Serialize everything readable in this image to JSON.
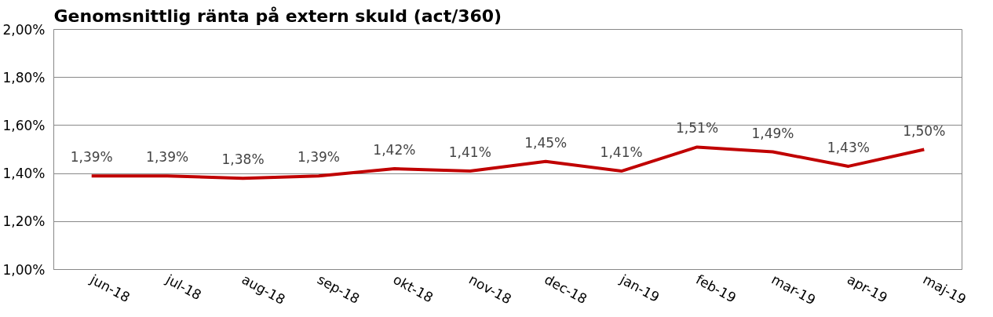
{
  "chart_data": {
    "type": "line",
    "title": "Genomsnittlig ränta på extern skuld (act/360)",
    "categories": [
      "jun-18",
      "jul-18",
      "aug-18",
      "sep-18",
      "okt-18",
      "nov-18",
      "dec-18",
      "jan-19",
      "feb-19",
      "mar-19",
      "apr-19",
      "maj-19"
    ],
    "series": [
      {
        "color": "#c00000",
        "values": [
          1.39,
          1.39,
          1.38,
          1.39,
          1.42,
          1.41,
          1.45,
          1.41,
          1.51,
          1.49,
          1.43,
          1.5
        ],
        "value_labels": [
          "1,39%",
          "1,39%",
          "1,38%",
          "1,39%",
          "1,42%",
          "1,41%",
          "1,45%",
          "1,41%",
          "1,51%",
          "1,49%",
          "1,43%",
          "1,50%"
        ]
      }
    ],
    "ylim": [
      1.0,
      2.0
    ],
    "yticks": [
      {
        "value": 1.0,
        "label": "1,00%"
      },
      {
        "value": 1.2,
        "label": "1,20%"
      },
      {
        "value": 1.4,
        "label": "1,40%"
      },
      {
        "value": 1.6,
        "label": "1,60%"
      },
      {
        "value": 1.8,
        "label": "1,80%"
      },
      {
        "value": 2.0,
        "label": "2,00%"
      }
    ],
    "grid": "y",
    "marker": "none",
    "line_style": "solid"
  }
}
